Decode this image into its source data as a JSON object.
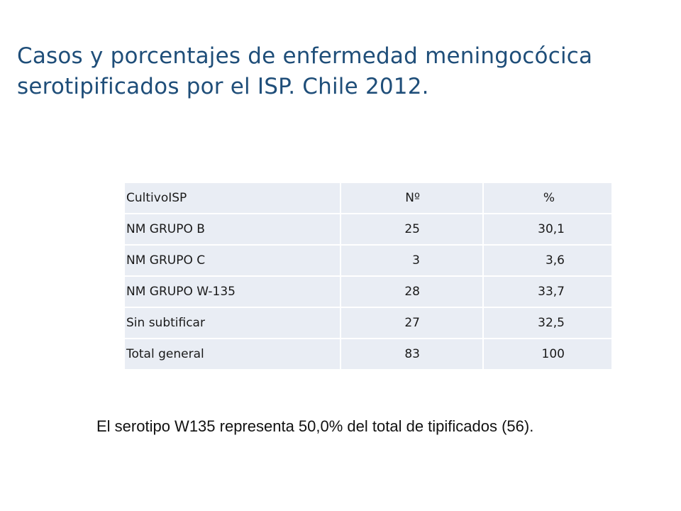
{
  "title": {
    "line1": "Casos y porcentajes de enfermedad meningocócica",
    "line2": "serotipificados por el ISP. Chile 2012."
  },
  "table": {
    "headers": [
      "CultivoISP",
      "Nº",
      "%"
    ],
    "rows": [
      [
        "NM GRUPO B",
        "25",
        "30,1"
      ],
      [
        "NM GRUPO C",
        "3",
        "3,6"
      ],
      [
        "NM GRUPO W-135",
        "28",
        "33,7"
      ],
      [
        "Sin subtificar",
        "27",
        "32,5"
      ],
      [
        "Total general",
        "83",
        "100"
      ]
    ]
  },
  "footnote": "El serotipo W135 representa 50,0% del total de tipificados (56).",
  "colors": {
    "title": "#1f4e79",
    "cell_background": "#e9edf4"
  }
}
